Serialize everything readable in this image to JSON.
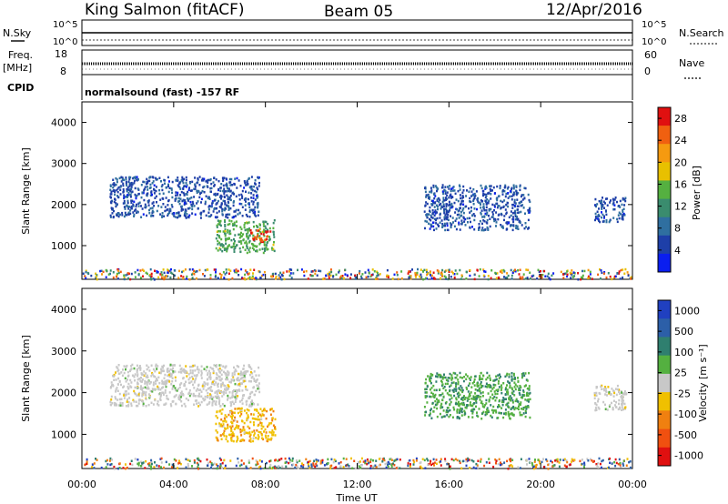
{
  "header": {
    "station": "King Salmon (fitACF)",
    "beam": "Beam 05",
    "date": "12/Apr/2016"
  },
  "top_panels": {
    "nsky_label": "N.Sky",
    "nsearch_label": "N.Search",
    "noise_ticks_left": [
      "10^5",
      "10^0"
    ],
    "noise_ticks_right": [
      "10^5",
      "10^0"
    ],
    "freq_label": "Freq.",
    "freq_unit": "[MHz]",
    "freq_ticks": [
      "18",
      "8"
    ],
    "nave_label": "Nave",
    "nave_ticks": [
      "60",
      "0"
    ],
    "cpid_label": "CPID",
    "cpid_text": "normalsound (fast) -157 RF"
  },
  "colors": {
    "power_scale": [
      "#0a1ef0",
      "#1e3fa8",
      "#2f6fa0",
      "#3a8c6e",
      "#55b040",
      "#e8c000",
      "#f59a10",
      "#f06010",
      "#e01010"
    ],
    "velocity_scale": [
      "#2040c0",
      "#2c5fa8",
      "#2f7f6f",
      "#54b040",
      "#c8c8c8",
      "#f0c000",
      "#f08010",
      "#f05010",
      "#e01010"
    ],
    "scatter_gray": "#c8c8c8"
  },
  "chart_data": [
    {
      "type": "heatmap",
      "title": "",
      "xlabel": "Time UT",
      "ylabel": "Slant Range [km]",
      "xlim": [
        0,
        24
      ],
      "ylim": [
        180,
        4500
      ],
      "x_ticks": [
        "00:00",
        "04:00",
        "08:00",
        "12:00",
        "16:00",
        "20:00",
        "00:00"
      ],
      "y_ticks": [
        "1000",
        "2000",
        "3000",
        "4000"
      ],
      "colorbar_label": "Power [dB]",
      "colorbar_ticks": [
        "4",
        "8",
        "12",
        "16",
        "20",
        "24",
        "28"
      ],
      "clim": [
        0,
        30
      ],
      "features": [
        {
          "t_start": 1.2,
          "t_end": 7.7,
          "range_start": 1700,
          "range_end": 2700,
          "value": 6
        },
        {
          "t_start": 5.8,
          "t_end": 8.4,
          "range_start": 850,
          "range_end": 1650,
          "value": 14
        },
        {
          "t_start": 7.3,
          "t_end": 8.2,
          "range_start": 1100,
          "range_end": 1400,
          "value": 26
        },
        {
          "t_start": 14.9,
          "t_end": 19.5,
          "range_start": 1400,
          "range_end": 2500,
          "value": 6
        },
        {
          "t_start": 22.3,
          "t_end": 23.7,
          "range_start": 1600,
          "range_end": 2200,
          "value": 6
        },
        {
          "t_start": 0.0,
          "t_end": 24.0,
          "range_start": 200,
          "range_end": 450,
          "value": 10
        }
      ]
    },
    {
      "type": "heatmap",
      "title": "",
      "xlabel": "Time UT",
      "ylabel": "Slant Range [km]",
      "xlim": [
        0,
        24
      ],
      "ylim": [
        180,
        4500
      ],
      "x_ticks": [
        "00:00",
        "04:00",
        "08:00",
        "12:00",
        "16:00",
        "20:00",
        "00:00"
      ],
      "y_ticks": [
        "1000",
        "2000",
        "3000",
        "4000"
      ],
      "colorbar_label": "Velocity [m s⁻¹]",
      "colorbar_ticks": [
        "1000",
        "500",
        "100",
        "25",
        "-25",
        "-100",
        "-500",
        "-1000"
      ],
      "clim": [
        -1000,
        1000
      ],
      "features": [
        {
          "t_start": 1.2,
          "t_end": 7.7,
          "range_start": 1700,
          "range_end": 2700,
          "value": 0
        },
        {
          "t_start": 5.8,
          "t_end": 8.4,
          "range_start": 850,
          "range_end": 1650,
          "value": -250
        },
        {
          "t_start": 14.9,
          "t_end": 19.5,
          "range_start": 1400,
          "range_end": 2500,
          "value": 300
        },
        {
          "t_start": 22.3,
          "t_end": 23.7,
          "range_start": 1600,
          "range_end": 2200,
          "value": 0
        },
        {
          "t_start": 0.0,
          "t_end": 24.0,
          "range_start": 200,
          "range_end": 450,
          "value": 0
        }
      ]
    }
  ]
}
